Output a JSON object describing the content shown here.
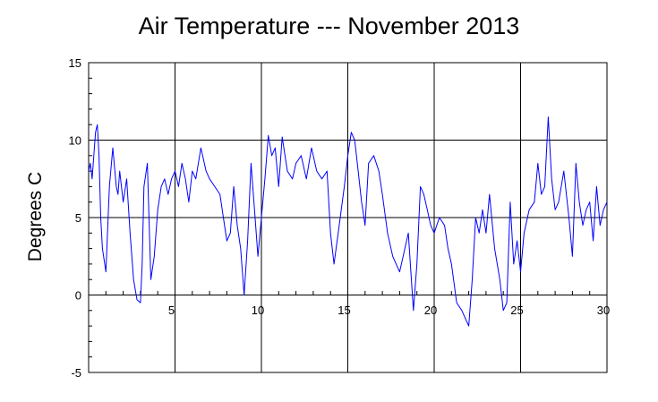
{
  "chart_data": {
    "type": "line",
    "title": "Air Temperature --- November 2013",
    "xlabel": "",
    "ylabel": "Degrees C",
    "xlim": [
      0,
      30
    ],
    "ylim": [
      -5,
      15
    ],
    "x_ticks": [
      5,
      10,
      15,
      20,
      25,
      30
    ],
    "x_tick_labels": [
      "5",
      "10",
      "15",
      "20",
      "25",
      "30"
    ],
    "y_ticks": [
      -5,
      0,
      5,
      10,
      15
    ],
    "y_tick_labels": [
      "-5",
      "0",
      "5",
      "10",
      "15"
    ],
    "grid": true,
    "legend": "none",
    "series": [
      {
        "color": "#0000ff",
        "x": [
          0,
          0.1,
          0.2,
          0.3,
          0.4,
          0.5,
          0.6,
          0.7,
          0.8,
          1.0,
          1.2,
          1.4,
          1.6,
          1.7,
          1.8,
          2.0,
          2.2,
          2.4,
          2.6,
          2.8,
          3.0,
          3.1,
          3.2,
          3.4,
          3.6,
          3.8,
          4.0,
          4.2,
          4.4,
          4.6,
          4.8,
          5.0,
          5.2,
          5.4,
          5.6,
          5.8,
          6.0,
          6.2,
          6.5,
          6.8,
          7.0,
          7.3,
          7.6,
          7.8,
          8.0,
          8.2,
          8.4,
          8.6,
          8.8,
          9.0,
          9.2,
          9.4,
          9.6,
          9.8,
          10.0,
          10.2,
          10.4,
          10.6,
          10.8,
          11.0,
          11.2,
          11.5,
          11.8,
          12.0,
          12.3,
          12.6,
          12.9,
          13.2,
          13.5,
          13.8,
          14.0,
          14.2,
          14.5,
          14.8,
          15.0,
          15.2,
          15.4,
          15.6,
          15.8,
          16.0,
          16.2,
          16.5,
          16.8,
          17.0,
          17.3,
          17.6,
          17.8,
          18.0,
          18.2,
          18.5,
          18.8,
          19.0,
          19.2,
          19.4,
          19.6,
          19.8,
          20.0,
          20.3,
          20.6,
          20.8,
          21.0,
          21.3,
          21.6,
          21.8,
          22.0,
          22.2,
          22.4,
          22.6,
          22.8,
          23.0,
          23.2,
          23.5,
          23.8,
          24.0,
          24.2,
          24.4,
          24.6,
          24.8,
          25.0,
          25.2,
          25.5,
          25.8,
          26.0,
          26.2,
          26.4,
          26.6,
          26.8,
          27.0,
          27.2,
          27.5,
          27.8,
          28.0,
          28.2,
          28.4,
          28.6,
          28.8,
          29.0,
          29.2,
          29.4,
          29.6,
          29.8,
          30.0
        ],
        "y": [
          8.0,
          8.5,
          7.5,
          9.0,
          10.5,
          11.0,
          9.0,
          5.0,
          3.0,
          1.5,
          7.0,
          9.5,
          7.0,
          6.5,
          8.0,
          6.0,
          7.5,
          4.0,
          1.0,
          -0.3,
          -0.5,
          2.0,
          7.0,
          8.5,
          1.0,
          2.5,
          5.5,
          7.0,
          7.5,
          6.5,
          7.5,
          8.0,
          7.0,
          8.5,
          7.5,
          6.0,
          8.0,
          7.5,
          9.5,
          8.0,
          7.5,
          7.0,
          6.5,
          5.0,
          3.5,
          4.0,
          7.0,
          4.5,
          3.0,
          0.0,
          3.5,
          8.5,
          5.5,
          2.5,
          5.0,
          7.5,
          10.3,
          9.0,
          9.5,
          7.0,
          10.2,
          8.0,
          7.5,
          8.5,
          9.0,
          7.5,
          9.5,
          8.0,
          7.5,
          8.0,
          4.0,
          2.0,
          4.5,
          7.0,
          9.0,
          10.5,
          10.0,
          8.0,
          6.0,
          4.5,
          8.5,
          9.0,
          8.0,
          6.5,
          4.0,
          2.5,
          2.0,
          1.5,
          2.5,
          4.0,
          -1.0,
          2.0,
          7.0,
          6.5,
          5.5,
          4.5,
          4.0,
          5.0,
          4.5,
          3.0,
          2.0,
          -0.5,
          -1.0,
          -1.5,
          -2.0,
          1.0,
          5.0,
          4.0,
          5.5,
          4.0,
          6.5,
          3.0,
          1.0,
          -1.0,
          -0.5,
          6.0,
          2.0,
          3.5,
          1.5,
          4.0,
          5.5,
          6.0,
          8.5,
          6.5,
          7.0,
          11.5,
          7.5,
          5.5,
          6.0,
          8.0,
          5.0,
          2.5,
          8.5,
          6.0,
          4.5,
          5.5,
          6.0,
          3.5,
          7.0,
          4.5,
          5.5,
          6.0
        ]
      }
    ]
  }
}
